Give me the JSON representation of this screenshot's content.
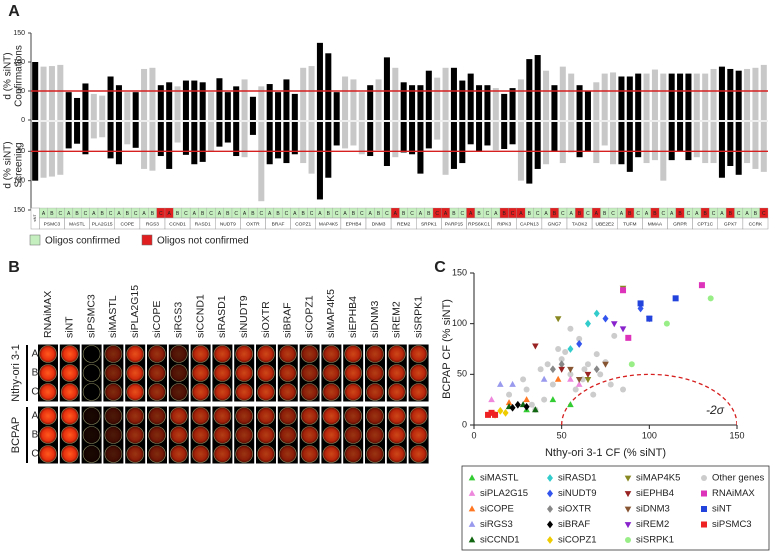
{
  "chart_data": [
    {
      "type": "mirror_bar",
      "panel": "A",
      "ylabel_top": "d (% siNT)",
      "ylabel_top_sub": "Confirmations",
      "ylabel_bottom": "d (% siNT)",
      "ylabel_bottom_sub": "Screening",
      "ylim": [
        0,
        150
      ],
      "yticks": [
        0,
        50,
        100,
        150
      ],
      "y2lim": [
        0,
        150
      ],
      "y2ticks": [
        50,
        100,
        150
      ],
      "threshold": 50,
      "threshold_color": "#d62020",
      "oligos": [
        "A",
        "B",
        "C"
      ],
      "legend": [
        {
          "name": "Oligos confirmed",
          "color": "#c6efc0"
        },
        {
          "name": "Oligos not confirmed",
          "color": "#e02020"
        }
      ],
      "control": {
        "name": "siNT",
        "confirmations": 100,
        "screening": 100,
        "color": "#000"
      },
      "genes": [
        {
          "name": "PSMC3",
          "confirmations": [
            92,
            93,
            95
          ],
          "screening": [
            95,
            93,
            90
          ],
          "colors": [
            "#c8c8c8",
            "#c8c8c8",
            "#c8c8c8"
          ],
          "confirmed": [
            true,
            true,
            true
          ]
        },
        {
          "name": "MASTL",
          "confirmations": [
            48,
            38,
            63
          ],
          "screening": [
            45,
            37,
            55
          ],
          "colors": [
            "#000",
            "#000",
            "#000"
          ],
          "confirmed": [
            true,
            true,
            true
          ]
        },
        {
          "name": "PLA2G15",
          "confirmations": [
            45,
            42,
            75
          ],
          "screening": [
            28,
            26,
            62
          ],
          "colors": [
            "#c8c8c8",
            "#c8c8c8",
            "#000"
          ],
          "confirmed": [
            true,
            true,
            true
          ]
        },
        {
          "name": "COPE",
          "confirmations": [
            60,
            48,
            48
          ],
          "screening": [
            72,
            38,
            44
          ],
          "colors": [
            "#000",
            "#c8c8c8",
            "#000"
          ],
          "confirmed": [
            true,
            true,
            true
          ]
        },
        {
          "name": "RGS3",
          "confirmations": [
            88,
            90,
            60
          ],
          "screening": [
            80,
            83,
            58
          ],
          "colors": [
            "#c8c8c8",
            "#c8c8c8",
            "#000"
          ],
          "confirmed": [
            true,
            true,
            false
          ]
        },
        {
          "name": "CCND1",
          "confirmations": [
            65,
            58,
            68
          ],
          "screening": [
            80,
            35,
            56
          ],
          "colors": [
            "#000",
            "#c8c8c8",
            "#000"
          ],
          "confirmed": [
            false,
            true,
            true
          ]
        },
        {
          "name": "RASD1",
          "confirmations": [
            68,
            65,
            48
          ],
          "screening": [
            72,
            68,
            50
          ],
          "colors": [
            "#000",
            "#000",
            "#c8c8c8"
          ],
          "confirmed": [
            true,
            true,
            true
          ]
        },
        {
          "name": "NUDT9",
          "confirmations": [
            72,
            48,
            58
          ],
          "screening": [
            42,
            35,
            58
          ],
          "colors": [
            "#000",
            "#000",
            "#000"
          ],
          "confirmed": [
            true,
            true,
            true
          ]
        },
        {
          "name": "OXTR",
          "confirmations": [
            70,
            40,
            58
          ],
          "screening": [
            60,
            22,
            135
          ],
          "colors": [
            "#c8c8c8",
            "#000",
            "#c8c8c8"
          ],
          "confirmed": [
            true,
            true,
            true
          ]
        },
        {
          "name": "BRAF",
          "confirmations": [
            62,
            48,
            70
          ],
          "screening": [
            72,
            62,
            70
          ],
          "colors": [
            "#000",
            "#000",
            "#000"
          ],
          "confirmed": [
            true,
            true,
            true
          ]
        },
        {
          "name": "COPZ1",
          "confirmations": [
            45,
            90,
            93
          ],
          "screening": [
            55,
            70,
            88
          ],
          "colors": [
            "#000",
            "#c8c8c8",
            "#c8c8c8"
          ],
          "confirmed": [
            true,
            true,
            true
          ]
        },
        {
          "name": "MAP4K5",
          "confirmations": [
            133,
            115,
            48
          ],
          "screening": [
            132,
            95,
            40
          ],
          "colors": [
            "#000",
            "#000",
            "#000"
          ],
          "confirmed": [
            true,
            true,
            true
          ]
        },
        {
          "name": "EPHB4",
          "confirmations": [
            75,
            70,
            48
          ],
          "screening": [
            45,
            40,
            55
          ],
          "colors": [
            "#c8c8c8",
            "#c8c8c8",
            "#c8c8c8"
          ],
          "confirmed": [
            true,
            true,
            true
          ]
        },
        {
          "name": "DNM3",
          "confirmations": [
            60,
            70,
            108
          ],
          "screening": [
            58,
            48,
            75
          ],
          "colors": [
            "#000",
            "#c8c8c8",
            "#000"
          ],
          "confirmed": [
            true,
            true,
            true
          ]
        },
        {
          "name": "REM2",
          "confirmations": [
            90,
            65,
            60
          ],
          "screening": [
            60,
            52,
            55
          ],
          "colors": [
            "#c8c8c8",
            "#000",
            "#000"
          ],
          "confirmed": [
            false,
            true,
            true
          ]
        },
        {
          "name": "SRPK1",
          "confirmations": [
            60,
            85,
            73
          ],
          "screening": [
            88,
            45,
            30
          ],
          "colors": [
            "#000",
            "#000",
            "#c8c8c8"
          ],
          "confirmed": [
            true,
            true,
            false
          ]
        },
        {
          "name": "PARP15",
          "confirmations": [
            90,
            90,
            68
          ],
          "screening": [
            90,
            80,
            70
          ],
          "colors": [
            "#c8c8c8",
            "#000",
            "#000"
          ],
          "confirmed": [
            false,
            true,
            true
          ]
        },
        {
          "name": "RPS6KC1",
          "confirmations": [
            80,
            60,
            60
          ],
          "screening": [
            38,
            50,
            40
          ],
          "colors": [
            "#000",
            "#000",
            "#000"
          ],
          "confirmed": [
            false,
            true,
            true
          ]
        },
        {
          "name": "RIPK3",
          "confirmations": [
            55,
            45,
            55
          ],
          "screening": [
            48,
            46,
            38
          ],
          "colors": [
            "#c8c8c8",
            "#000",
            "#000"
          ],
          "confirmed": [
            true,
            false,
            false
          ]
        },
        {
          "name": "CAPN13",
          "confirmations": [
            70,
            105,
            112
          ],
          "screening": [
            100,
            105,
            80
          ],
          "colors": [
            "#c8c8c8",
            "#000",
            "#000"
          ],
          "confirmed": [
            false,
            true,
            true
          ]
        },
        {
          "name": "GNG7",
          "confirmations": [
            85,
            60,
            92
          ],
          "screening": [
            72,
            50,
            70
          ],
          "colors": [
            "#c8c8c8",
            "#000",
            "#c8c8c8"
          ],
          "confirmed": [
            true,
            false,
            true
          ]
        },
        {
          "name": "TAOK2",
          "confirmations": [
            80,
            60,
            50
          ],
          "screening": [
            52,
            60,
            50
          ],
          "colors": [
            "#c8c8c8",
            "#000",
            "#000"
          ],
          "confirmed": [
            true,
            false,
            true
          ]
        },
        {
          "name": "UBE2E2",
          "confirmations": [
            65,
            80,
            82
          ],
          "screening": [
            70,
            40,
            72
          ],
          "colors": [
            "#c8c8c8",
            "#c8c8c8",
            "#c8c8c8"
          ],
          "confirmed": [
            false,
            true,
            true
          ]
        },
        {
          "name": "TUFM",
          "confirmations": [
            75,
            75,
            80
          ],
          "screening": [
            72,
            85,
            60
          ],
          "colors": [
            "#000",
            "#000",
            "#000"
          ],
          "confirmed": [
            true,
            false,
            true
          ]
        },
        {
          "name": "MMAA",
          "confirmations": [
            80,
            87,
            80
          ],
          "screening": [
            70,
            65,
            100
          ],
          "colors": [
            "#c8c8c8",
            "#c8c8c8",
            "#c8c8c8"
          ],
          "confirmed": [
            true,
            false,
            true
          ]
        },
        {
          "name": "GRPR",
          "confirmations": [
            80,
            80,
            80
          ],
          "screening": [
            65,
            50,
            65
          ],
          "colors": [
            "#000",
            "#000",
            "#000"
          ],
          "confirmed": [
            true,
            false,
            true
          ]
        },
        {
          "name": "CPT1C",
          "confirmations": [
            80,
            80,
            88
          ],
          "screening": [
            60,
            70,
            70
          ],
          "colors": [
            "#c8c8c8",
            "#c8c8c8",
            "#c8c8c8"
          ],
          "confirmed": [
            true,
            false,
            true
          ]
        },
        {
          "name": "GPX7",
          "confirmations": [
            92,
            88,
            85
          ],
          "screening": [
            95,
            75,
            90
          ],
          "colors": [
            "#000",
            "#000",
            "#000"
          ],
          "confirmed": [
            true,
            false,
            true
          ]
        },
        {
          "name": "CCRK",
          "confirmations": [
            88,
            90,
            95
          ],
          "screening": [
            70,
            80,
            85
          ],
          "colors": [
            "#c8c8c8",
            "#c8c8c8",
            "#c8c8c8"
          ],
          "confirmed": [
            true,
            true,
            false
          ]
        }
      ]
    },
    {
      "type": "scatter",
      "panel": "C",
      "xlabel": "Nthy-ori 3-1 CF (% siNT)",
      "ylabel": "BCPAP CF (% siNT)",
      "xlim": [
        0,
        150
      ],
      "ylim": [
        0,
        150
      ],
      "xticks": [
        0,
        50,
        100,
        150
      ],
      "yticks": [
        0,
        50,
        100,
        150
      ],
      "threshold": {
        "label": "-2σ",
        "center": [
          100,
          0
        ],
        "radius": 50,
        "color": "#d62020"
      },
      "series": [
        {
          "name": "siMASTL",
          "color": "#33cc33",
          "marker": "triangle",
          "x": [
            30,
            45,
            55
          ],
          "y": [
            15,
            25,
            20
          ]
        },
        {
          "name": "siPLA2G15",
          "color": "#ee88dd",
          "marker": "triangle",
          "x": [
            10,
            60,
            55
          ],
          "y": [
            25,
            40,
            45
          ]
        },
        {
          "name": "siCOPE",
          "color": "#ff7722",
          "marker": "triangle",
          "x": [
            20,
            30,
            48
          ],
          "y": [
            22,
            25,
            45
          ]
        },
        {
          "name": "siRGS3",
          "color": "#9999ee",
          "marker": "triangle",
          "x": [
            15,
            22,
            40
          ],
          "y": [
            40,
            40,
            45
          ]
        },
        {
          "name": "siCCND1",
          "color": "#116611",
          "marker": "triangle",
          "x": [
            28,
            35,
            20
          ],
          "y": [
            20,
            15,
            18
          ]
        },
        {
          "name": "siRASD1",
          "color": "#33cccc",
          "marker": "diamond",
          "x": [
            65,
            55,
            70
          ],
          "y": [
            100,
            75,
            110
          ]
        },
        {
          "name": "siNUDT9",
          "color": "#3355ee",
          "marker": "diamond",
          "x": [
            75,
            60,
            95
          ],
          "y": [
            105,
            80,
            115
          ]
        },
        {
          "name": "siOXTR",
          "color": "#888888",
          "marker": "diamond",
          "x": [
            50,
            45,
            70
          ],
          "y": [
            60,
            55,
            55
          ]
        },
        {
          "name": "siBRAF",
          "color": "#000000",
          "marker": "diamond",
          "x": [
            25,
            30,
            22
          ],
          "y": [
            20,
            18,
            17
          ]
        },
        {
          "name": "siCOPZ1",
          "color": "#eecc00",
          "marker": "diamond",
          "x": [
            12,
            18,
            15
          ],
          "y": [
            10,
            12,
            14
          ]
        },
        {
          "name": "siMAP4K5",
          "color": "#888822",
          "marker": "triangle-down",
          "x": [
            48,
            85,
            65
          ],
          "y": [
            105,
            135,
            45
          ]
        },
        {
          "name": "siEPHB4",
          "color": "#992222",
          "marker": "triangle-down",
          "x": [
            35,
            50,
            65
          ],
          "y": [
            78,
            55,
            50
          ]
        },
        {
          "name": "siDNM3",
          "color": "#885533",
          "marker": "triangle-down",
          "x": [
            55,
            75,
            60
          ],
          "y": [
            55,
            60,
            45
          ]
        },
        {
          "name": "siREM2",
          "color": "#8822cc",
          "marker": "triangle-down",
          "x": [
            100,
            80,
            85
          ],
          "y": [
            105,
            100,
            95
          ]
        },
        {
          "name": "siSRPK1",
          "color": "#99ee88",
          "marker": "circle",
          "x": [
            135,
            110,
            90
          ],
          "y": [
            125,
            100,
            60
          ]
        },
        {
          "name": "Other genes",
          "color": "#cccccc",
          "marker": "circle",
          "x": [
            20,
            28,
            33,
            38,
            42,
            45,
            50,
            52,
            55,
            58,
            60,
            62,
            65,
            68,
            70,
            72,
            75,
            78,
            80,
            85,
            40,
            48,
            35,
            55,
            63,
            30
          ],
          "y": [
            30,
            45,
            20,
            55,
            60,
            40,
            65,
            72,
            50,
            35,
            85,
            45,
            60,
            30,
            70,
            50,
            62,
            40,
            88,
            35,
            25,
            75,
            15,
            95,
            55,
            35
          ]
        },
        {
          "name": "RNAiMAX",
          "color": "#dd33bb",
          "marker": "square",
          "x": [
            85,
            88,
            130
          ],
          "y": [
            133,
            86,
            138
          ]
        },
        {
          "name": "siNT",
          "color": "#2244dd",
          "marker": "square",
          "x": [
            115,
            100,
            95
          ],
          "y": [
            125,
            105,
            120
          ]
        },
        {
          "name": "siPSMC3",
          "color": "#ee2222",
          "marker": "square",
          "x": [
            8,
            10,
            12
          ],
          "y": [
            10,
            12,
            10
          ]
        }
      ]
    }
  ],
  "image_grid": {
    "panel": "B",
    "columns": [
      "RNAiMAX",
      "siNT",
      "siPSMC3",
      "siMASTL",
      "siPLA2G15",
      "siCOPE",
      "siRGS3",
      "siCCND1",
      "siRASD1",
      "siNUDT9",
      "siOXTR",
      "siBRAF",
      "siCOPZ1",
      "siMAP4K5",
      "siEPHB4",
      "siDNM3",
      "siREM2",
      "siSRPK1"
    ],
    "groups": [
      {
        "name": "Nthy-ori 3-1",
        "rows": [
          "A",
          "B",
          "C"
        ]
      },
      {
        "name": "BCPAP",
        "rows": [
          "A",
          "B",
          "C"
        ]
      }
    ]
  }
}
